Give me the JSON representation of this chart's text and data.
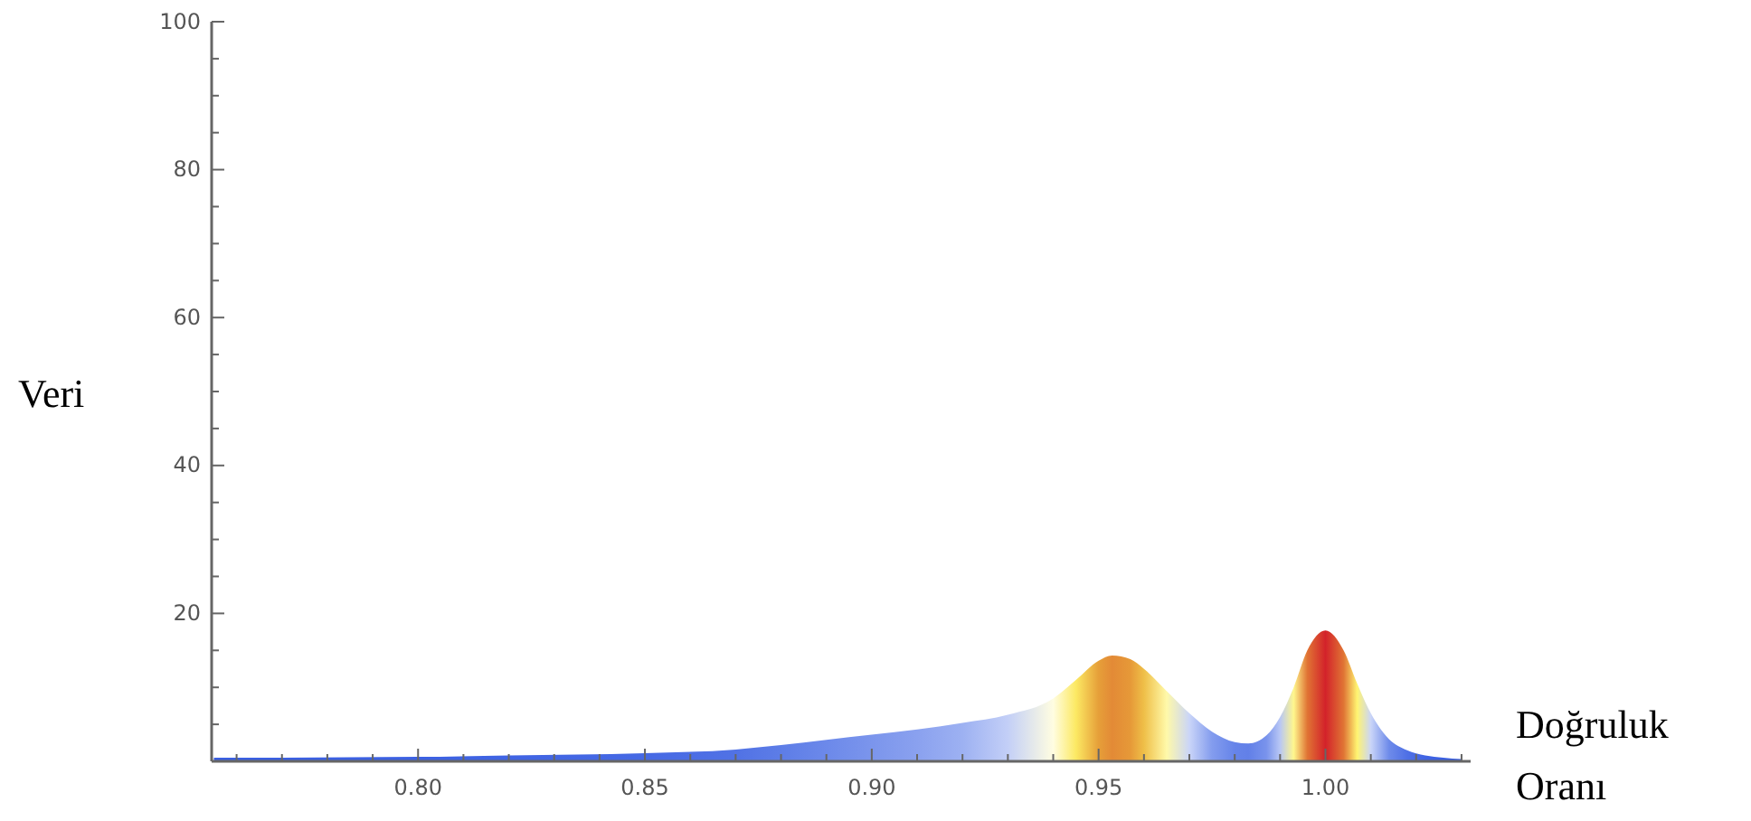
{
  "chart_data": {
    "type": "area",
    "xlabel": "Doğruluk Oranı",
    "ylabel": "Veri",
    "xlim": [
      0.7545,
      1.032
    ],
    "ylim": [
      0,
      100
    ],
    "xticks": [
      {
        "value": 0.76,
        "label": null
      },
      {
        "value": 0.77,
        "label": null
      },
      {
        "value": 0.78,
        "label": null
      },
      {
        "value": 0.79,
        "label": null
      },
      {
        "value": 0.8,
        "label": "0.80"
      },
      {
        "value": 0.81,
        "label": null
      },
      {
        "value": 0.82,
        "label": null
      },
      {
        "value": 0.83,
        "label": null
      },
      {
        "value": 0.84,
        "label": null
      },
      {
        "value": 0.85,
        "label": "0.85"
      },
      {
        "value": 0.86,
        "label": null
      },
      {
        "value": 0.87,
        "label": null
      },
      {
        "value": 0.88,
        "label": null
      },
      {
        "value": 0.89,
        "label": null
      },
      {
        "value": 0.9,
        "label": "0.90"
      },
      {
        "value": 0.91,
        "label": null
      },
      {
        "value": 0.92,
        "label": null
      },
      {
        "value": 0.93,
        "label": null
      },
      {
        "value": 0.94,
        "label": null
      },
      {
        "value": 0.95,
        "label": "0.95"
      },
      {
        "value": 0.96,
        "label": null
      },
      {
        "value": 0.97,
        "label": null
      },
      {
        "value": 0.98,
        "label": null
      },
      {
        "value": 0.99,
        "label": null
      },
      {
        "value": 1.0,
        "label": "1.00"
      },
      {
        "value": 1.01,
        "label": null
      },
      {
        "value": 1.02,
        "label": null
      },
      {
        "value": 1.03,
        "label": null
      }
    ],
    "yticks": [
      {
        "value": 5,
        "label": null
      },
      {
        "value": 10,
        "label": null
      },
      {
        "value": 15,
        "label": null
      },
      20,
      {
        "value": 25,
        "label": null
      },
      {
        "value": 30,
        "label": null
      },
      {
        "value": 35,
        "label": null
      },
      40,
      {
        "value": 45,
        "label": null
      },
      {
        "value": 50,
        "label": null
      },
      {
        "value": 55,
        "label": null
      },
      60,
      {
        "value": 65,
        "label": null
      },
      {
        "value": 70,
        "label": null
      },
      {
        "value": 75,
        "label": null
      },
      80,
      {
        "value": 85,
        "label": null
      },
      {
        "value": 90,
        "label": null
      },
      {
        "value": 95,
        "label": null
      },
      100
    ],
    "grid": false,
    "series": [
      {
        "color": "#2f56e0",
        "x": [
          0.755,
          0.77,
          0.8,
          0.82,
          0.85,
          0.87,
          0.88,
          0.89,
          0.9,
          0.91,
          0.92,
          0.93,
          0.94,
          0.945,
          0.95,
          0.953,
          0.957,
          0.96,
          0.965,
          0.97,
          0.975,
          0.98,
          0.983,
          0.987,
          0.99,
          0.993,
          0.996,
          1.0,
          1.004,
          1.007,
          1.01,
          1.014,
          1.018,
          1.022,
          1.026,
          1.03
        ],
        "values": [
          0.5,
          0.5,
          0.6,
          0.8,
          1.1,
          1.6,
          2.2,
          2.9,
          3.6,
          4.3,
          5.2,
          6.3,
          8.5,
          11,
          13.6,
          14.3,
          13.8,
          12.5,
          9.5,
          6.5,
          4,
          2.6,
          2.4,
          3.5,
          6,
          10,
          15,
          17.7,
          15,
          10.5,
          6.5,
          3,
          1.5,
          0.8,
          0.5,
          0.3
        ]
      }
    ]
  }
}
